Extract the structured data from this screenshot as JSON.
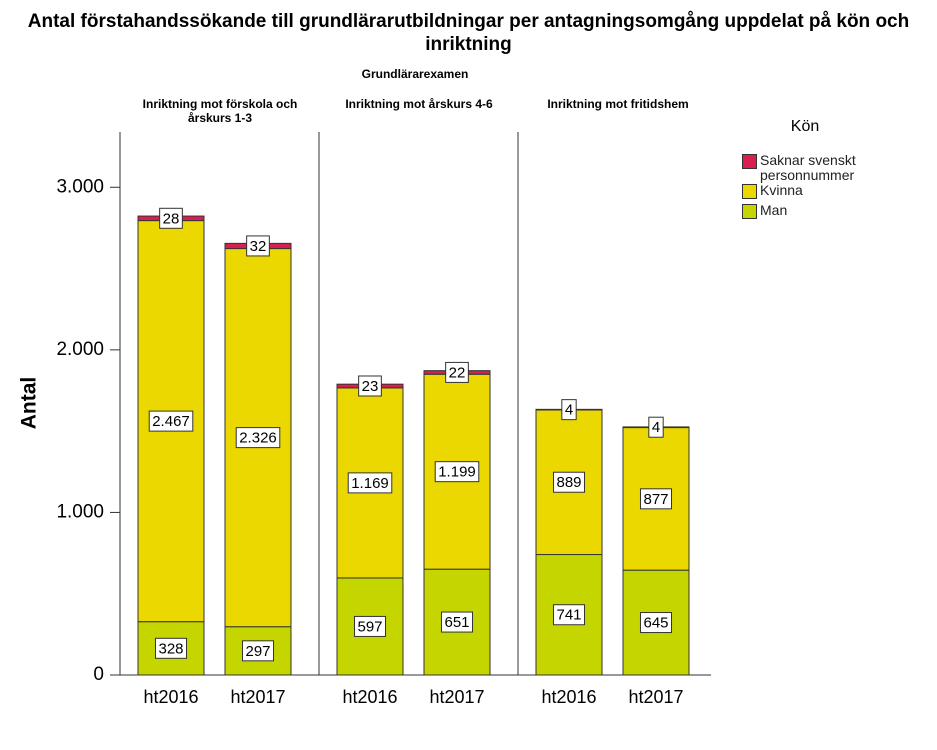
{
  "chart_data": {
    "type": "bar",
    "stacked": true,
    "title": "Antal förstahandssökande till grundlärarutbildningar per antagningsomgång uppdelat på kön och inriktning",
    "subtitle": "Grundlärarexamen",
    "ylabel": "Antal",
    "legend_title": "Kön",
    "legend": "right",
    "grid": false,
    "ylim": [
      0,
      3340
    ],
    "yticks": [
      0,
      {
        "value": 1000,
        "label": "1.000"
      },
      {
        "value": 2000,
        "label": "2.000"
      },
      {
        "value": 3000,
        "label": "3.000"
      }
    ],
    "panels": [
      {
        "title": "Inriktning mot förskola och årskurs 1-3",
        "categories": [
          "ht2016",
          "ht2017"
        ]
      },
      {
        "title": "Inriktning mot årskurs 4-6",
        "categories": [
          "ht2016",
          "ht2017"
        ]
      },
      {
        "title": "Inriktning mot fritidshem",
        "categories": [
          "ht2016",
          "ht2017"
        ]
      }
    ],
    "series": [
      {
        "name": "Saknar svenskt personnummer",
        "color": "#d81f4f",
        "values": [
          [
            28,
            32
          ],
          [
            23,
            22
          ],
          [
            4,
            4
          ]
        ],
        "value_labels": [
          [
            "28",
            "32"
          ],
          [
            "23",
            "22"
          ],
          [
            "4",
            "4"
          ]
        ]
      },
      {
        "name": "Kvinna",
        "color": "#ebd800",
        "values": [
          [
            2467,
            2326
          ],
          [
            1169,
            1199
          ],
          [
            889,
            877
          ]
        ],
        "value_labels": [
          [
            "2.467",
            "2.326"
          ],
          [
            "1.169",
            "1.199"
          ],
          [
            "889",
            "877"
          ]
        ]
      },
      {
        "name": "Man",
        "color": "#c4d500",
        "values": [
          [
            328,
            297
          ],
          [
            597,
            651
          ],
          [
            741,
            645
          ]
        ],
        "value_labels": [
          [
            "328",
            "297"
          ],
          [
            "597",
            "651"
          ],
          [
            "741",
            "645"
          ]
        ]
      }
    ]
  }
}
